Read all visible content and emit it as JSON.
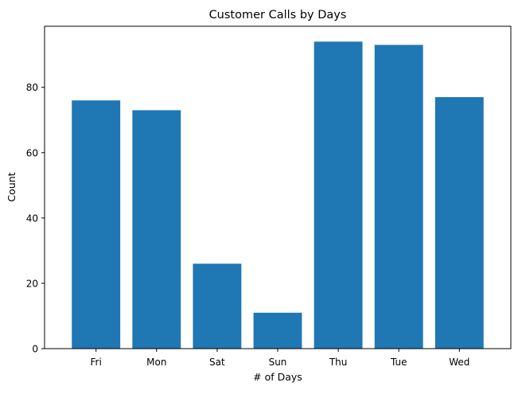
{
  "chart_data": {
    "type": "bar",
    "title": "Customer Calls by Days",
    "xlabel": "# of Days",
    "ylabel": "Count",
    "categories": [
      "Fri",
      "Mon",
      "Sat",
      "Sun",
      "Thu",
      "Tue",
      "Wed"
    ],
    "values": [
      76,
      73,
      26,
      11,
      94,
      93,
      77
    ],
    "ylim": [
      0,
      98.7
    ],
    "yticks": [
      0,
      20,
      40,
      60,
      80
    ],
    "grid": false,
    "legend": "none",
    "bar_color": "#1f77b4",
    "axis_color": "#000000"
  }
}
